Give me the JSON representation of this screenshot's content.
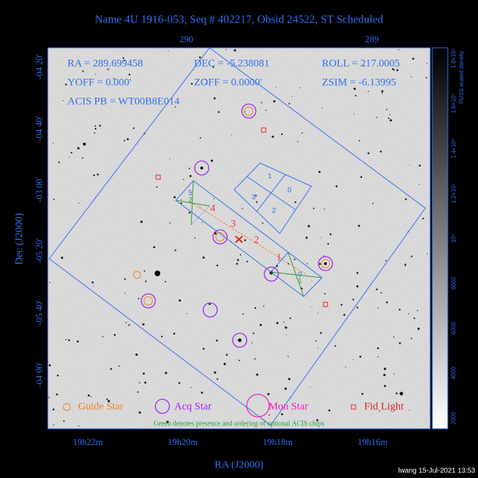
{
  "title": "Name 4U 1916-053, Seq # 402217, Obsid 24522, ST Scheduled",
  "info": {
    "ra": "RA = 289.699458",
    "dec": "DEC = -5.238081",
    "roll": "ROLL = 217.0005",
    "yoff": "YOFF =   0.000'",
    "zoff": "ZOFF =  0.0000'",
    "zsim": "ZSIM = -6.13995",
    "acis": "ACIS PB = WT00B8E014"
  },
  "top_axis": [
    "290",
    "289"
  ],
  "left_axis": [
    "-04 20'",
    "-04 40'",
    "-03 00'",
    "-05 20'",
    "-05 40'",
    "-04 00'"
  ],
  "bottom_axis": [
    "19h22m",
    "19h20m",
    "19h18m",
    "19h16m"
  ],
  "x_label": "RA (J2000)",
  "y_label": "Dec (J2000)",
  "colorbar": {
    "label": "PUSS scaled density",
    "ticks": [
      "2000",
      "4000",
      "6000",
      "8000",
      "10⁴",
      "1.2×10⁴",
      "1.4×10⁴",
      "1.6×10⁴",
      "1.8×10⁴"
    ]
  },
  "chips": {
    "i_array": [
      "1",
      "0",
      "3",
      "2"
    ],
    "s_array": [
      "4",
      "3",
      "2",
      "1"
    ],
    "optional": [
      "5",
      "2",
      "0",
      "1"
    ]
  },
  "legend": [
    "Guide Star",
    "Acq Star",
    "Mon Star",
    "Fid Light"
  ],
  "note": "Green denotes presence and ordering of optional ACIS chips",
  "footer": "lwang 15-Jul-2021 13:53"
}
